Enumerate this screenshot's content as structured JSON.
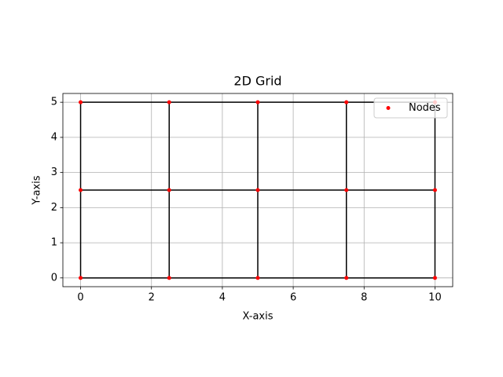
{
  "chart_data": {
    "type": "scatter",
    "title": "2D Grid",
    "x_label": "X-axis",
    "y_label": "Y-axis",
    "xlim": [
      -0.5,
      10.5
    ],
    "ylim": [
      -0.25,
      5.25
    ],
    "xticks": [
      0,
      2,
      4,
      6,
      8,
      10
    ],
    "yticks": [
      0,
      1,
      2,
      3,
      4,
      5
    ],
    "grid": true,
    "legend": "upper right",
    "series": [
      {
        "name": "Nodes",
        "color": "#ff0000",
        "x": [
          0,
          2.5,
          5,
          7.5,
          10,
          0,
          2.5,
          5,
          7.5,
          10,
          0,
          2.5,
          5,
          7.5,
          10
        ],
        "values": [
          0,
          0,
          0,
          0,
          0,
          2.5,
          2.5,
          2.5,
          2.5,
          2.5,
          5,
          5,
          5,
          5,
          5
        ]
      }
    ],
    "segments_color": "#000000",
    "segments": [
      {
        "x": [
          0,
          10
        ],
        "y": [
          0,
          0
        ]
      },
      {
        "x": [
          0,
          10
        ],
        "y": [
          2.5,
          2.5
        ]
      },
      {
        "x": [
          0,
          10
        ],
        "y": [
          5,
          5
        ]
      },
      {
        "x": [
          0,
          0
        ],
        "y": [
          0,
          5
        ]
      },
      {
        "x": [
          2.5,
          2.5
        ],
        "y": [
          0,
          5
        ]
      },
      {
        "x": [
          5,
          5
        ],
        "y": [
          0,
          5
        ]
      },
      {
        "x": [
          7.5,
          7.5
        ],
        "y": [
          0,
          5
        ]
      },
      {
        "x": [
          10,
          10
        ],
        "y": [
          0,
          5
        ]
      }
    ]
  }
}
